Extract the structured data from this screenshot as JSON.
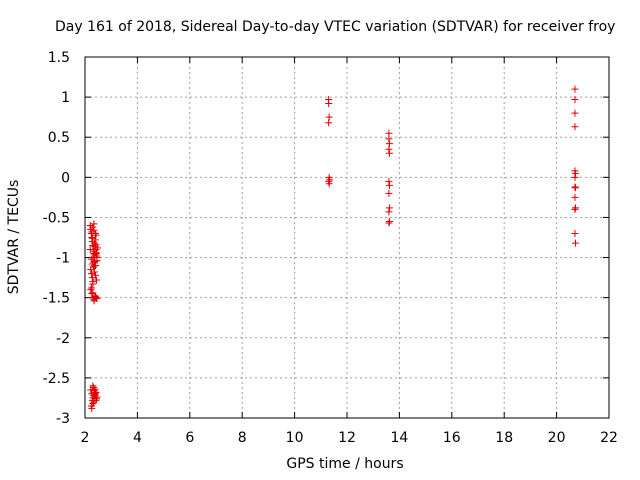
{
  "chart_data": {
    "type": "scatter",
    "title": "Day 161 of 2018, Sidereal Day-to-day VTEC variation (SDTVAR) for receiver froy",
    "xlabel": "GPS time / hours",
    "ylabel": "SDTVAR / TECUs",
    "xlim": [
      2,
      22
    ],
    "ylim": [
      -3,
      1.5
    ],
    "xticks": [
      "2",
      "4",
      "6",
      "8",
      "10",
      "12",
      "14",
      "16",
      "18",
      "20",
      "22"
    ],
    "yticks": [
      "1.5",
      "1",
      "0.5",
      "0",
      "-0.5",
      "-1",
      "-1.5",
      "-2",
      "-2.5",
      "-3"
    ],
    "grid": true,
    "marker": "+",
    "marker_color": "#e00000",
    "series": [
      {
        "x": [
          2.2,
          2.22,
          2.24,
          2.26,
          2.28,
          2.3,
          2.32,
          2.34,
          2.36,
          2.38,
          2.4,
          2.42,
          2.44,
          2.46,
          2.48,
          2.22,
          2.25,
          2.28,
          2.3,
          2.33,
          2.36,
          2.39,
          2.42,
          2.45,
          2.2,
          2.24,
          2.28,
          2.32,
          2.36,
          2.4,
          2.44,
          2.26,
          2.3,
          2.34,
          2.38,
          2.42,
          2.46,
          2.3,
          2.34,
          2.38,
          2.42,
          2.22,
          2.26,
          2.3,
          2.34,
          2.38,
          2.42,
          2.25,
          2.3,
          2.35,
          2.4,
          2.45,
          2.3,
          2.36,
          2.42,
          2.28,
          2.34,
          2.4,
          2.22,
          2.26,
          2.3,
          2.34,
          2.38,
          2.42,
          2.46,
          2.24,
          2.28,
          2.32,
          2.36,
          2.4,
          2.44,
          2.26,
          2.3,
          2.34,
          2.38,
          2.42,
          2.3,
          2.36,
          11.3,
          11.3,
          11.32,
          11.3,
          11.32,
          11.3,
          11.32,
          11.34,
          13.6,
          13.6,
          13.62,
          13.6,
          13.62,
          13.6,
          13.62,
          13.6,
          13.62,
          13.6,
          13.62,
          13.6,
          20.7,
          20.7,
          20.7,
          20.7,
          20.7,
          20.72,
          20.7,
          20.7,
          20.72,
          20.7,
          20.72,
          20.7,
          20.7,
          20.72
        ],
        "y": [
          -0.6,
          -0.65,
          -0.7,
          -0.75,
          -0.8,
          -0.85,
          -0.9,
          -0.95,
          -1.0,
          -1.05,
          -1.1,
          -0.9,
          -0.95,
          -1.0,
          -0.88,
          -1.15,
          -1.2,
          -1.25,
          -1.0,
          -0.92,
          -0.82,
          -0.78,
          -0.72,
          -0.98,
          -0.9,
          -1.02,
          -1.08,
          -1.12,
          -1.18,
          -1.22,
          -1.28,
          -0.68,
          -0.62,
          -0.58,
          -0.86,
          -0.94,
          -1.04,
          -1.3,
          -1.06,
          -0.96,
          -0.84,
          -1.4,
          -1.45,
          -1.5,
          -1.52,
          -1.48,
          -1.5,
          -1.38,
          -1.44,
          -1.54,
          -1.49,
          -1.51,
          -1.33,
          -1.1,
          -0.9,
          -0.76,
          -0.66,
          -0.7,
          -2.65,
          -2.7,
          -2.75,
          -2.8,
          -2.72,
          -2.68,
          -2.74,
          -2.85,
          -2.78,
          -2.62,
          -2.66,
          -2.7,
          -2.76,
          -2.88,
          -2.82,
          -2.72,
          -2.64,
          -2.78,
          -2.6,
          -2.69,
          0.97,
          0.92,
          0.75,
          0.68,
          0.0,
          -0.05,
          -0.08,
          -0.03,
          0.55,
          0.48,
          0.42,
          0.35,
          0.3,
          -0.05,
          -0.1,
          -0.2,
          -0.38,
          -0.43,
          -0.55,
          -0.57,
          1.1,
          0.97,
          0.8,
          0.63,
          0.08,
          0.05,
          0.0,
          -0.12,
          -0.13,
          -0.25,
          -0.38,
          -0.4,
          -0.7,
          -0.82
        ]
      }
    ]
  }
}
